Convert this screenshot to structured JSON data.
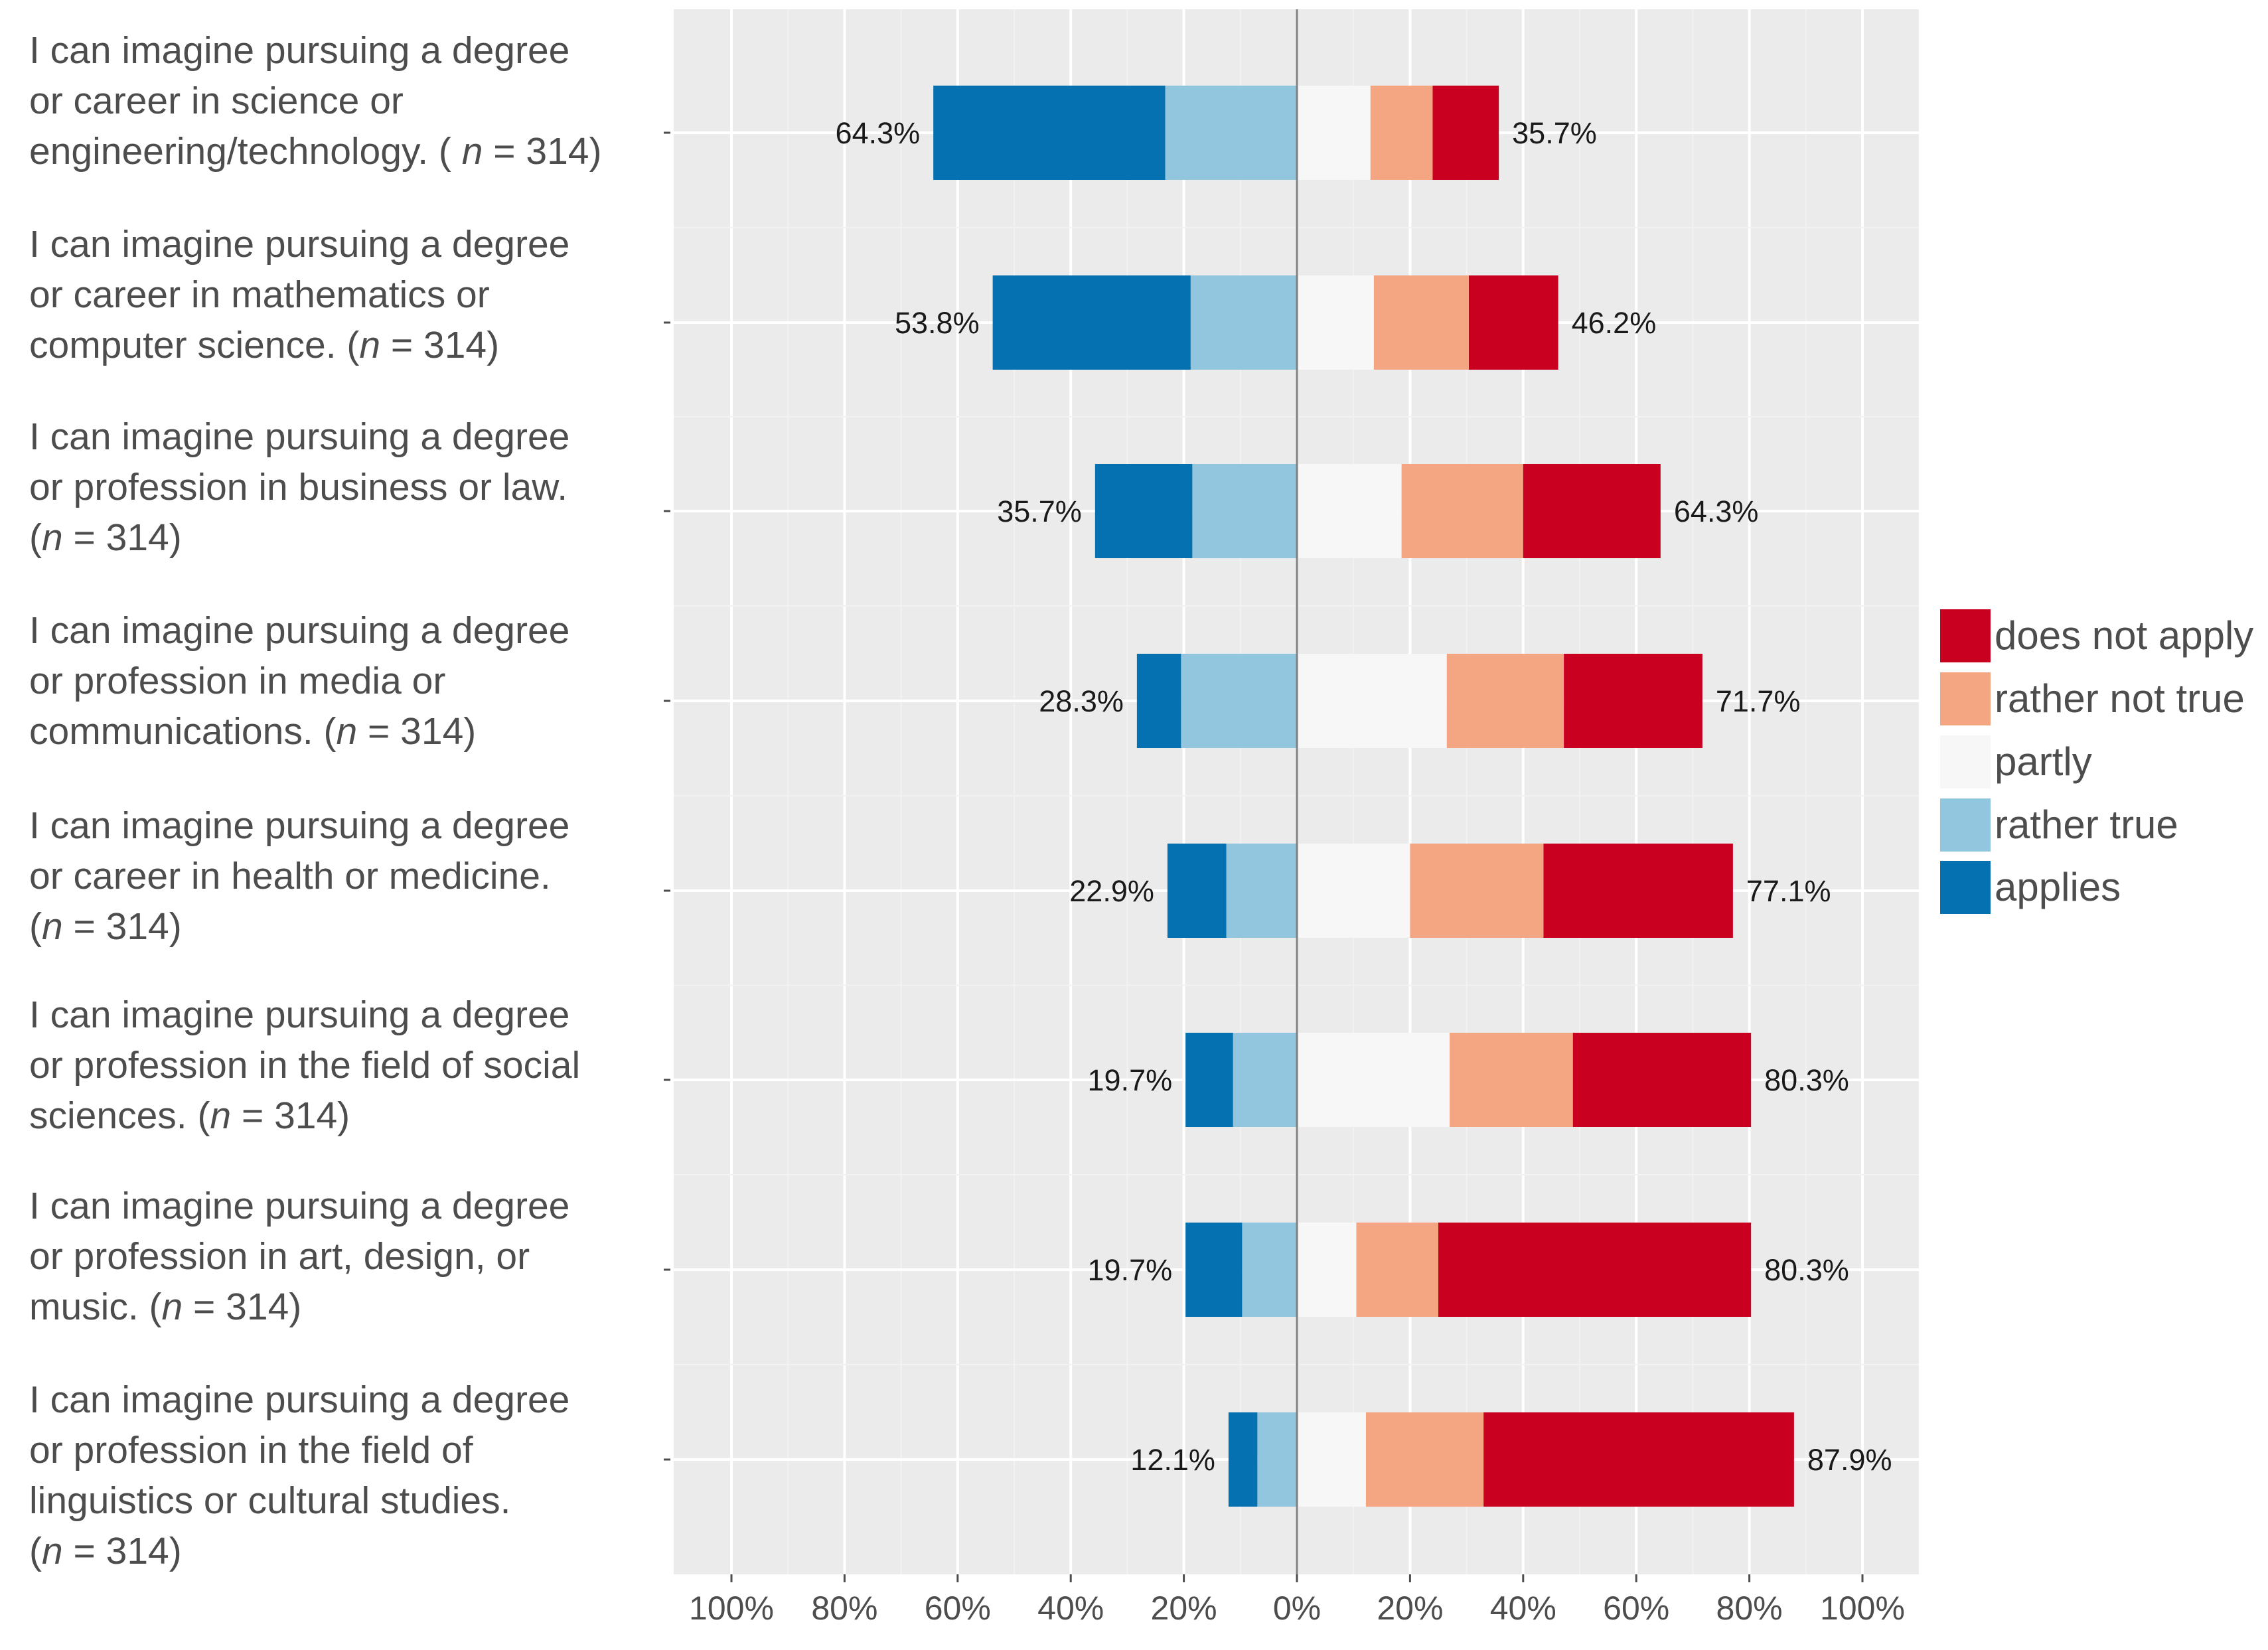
{
  "chart_data": {
    "type": "bar",
    "orientation": "horizontal",
    "stacking": "diverging",
    "xlim": [
      -100,
      100
    ],
    "x_ticks": [
      -100,
      -80,
      -60,
      -40,
      -20,
      0,
      20,
      40,
      60,
      80,
      100
    ],
    "x_tick_labels": [
      "100%",
      "80%",
      "60%",
      "40%",
      "20%",
      "0%",
      "20%",
      "40%",
      "60%",
      "80%",
      "100%"
    ],
    "grid": true,
    "legend_position": "right",
    "colors": {
      "applies": "#0571b0",
      "rather_true": "#92c5de",
      "partly": "#f7f7f7",
      "rather_not_true": "#f4a582",
      "does_not_apply": "#ca0020"
    },
    "legend": [
      {
        "key": "does_not_apply",
        "label": "does not apply"
      },
      {
        "key": "rather_not_true",
        "label": "rather not true"
      },
      {
        "key": "partly",
        "label": "partly"
      },
      {
        "key": "rather_true",
        "label": "rather true"
      },
      {
        "key": "applies",
        "label": "applies"
      }
    ],
    "categories": [
      {
        "lines": [
          "I can imagine pursuing a degree",
          "or career in science or",
          "engineering/technology. ( |n| = 314)"
        ],
        "applies": 41,
        "rather_true": 23.3,
        "partly": 13,
        "rather_not_true": 11,
        "does_not_apply": 11.7,
        "left_label": "64.3%",
        "right_label": "35.7%"
      },
      {
        "lines": [
          "I can imagine pursuing a degree",
          "or career in mathematics or",
          "computer science. (|n| = 314)"
        ],
        "applies": 35,
        "rather_true": 18.8,
        "partly": 13.6,
        "rather_not_true": 16.8,
        "does_not_apply": 15.8,
        "left_label": "53.8%",
        "right_label": "46.2%"
      },
      {
        "lines": [
          "I can imagine pursuing a degree",
          "or profession in business or law.",
          "(|n| = 314)"
        ],
        "applies": 17.2,
        "rather_true": 18.5,
        "partly": 18.5,
        "rather_not_true": 21.5,
        "does_not_apply": 24.3,
        "left_label": "35.7%",
        "right_label": "64.3%"
      },
      {
        "lines": [
          "I can imagine pursuing a degree",
          "or profession in media or",
          "communications. (|n| = 314)"
        ],
        "applies": 7.8,
        "rather_true": 20.5,
        "partly": 26.5,
        "rather_not_true": 20.7,
        "does_not_apply": 24.5,
        "left_label": "28.3%",
        "right_label": "71.7%"
      },
      {
        "lines": [
          "I can imagine pursuing a degree",
          "or career in health or medicine.",
          "(|n| = 314)"
        ],
        "applies": 10.4,
        "rather_true": 12.5,
        "partly": 20,
        "rather_not_true": 23.6,
        "does_not_apply": 33.5,
        "left_label": "22.9%",
        "right_label": "77.1%"
      },
      {
        "lines": [
          "I can imagine pursuing a degree",
          "or profession in the field of social",
          "sciences. (|n| = 314)"
        ],
        "applies": 8.4,
        "rather_true": 11.3,
        "partly": 27,
        "rather_not_true": 21.8,
        "does_not_apply": 31.5,
        "left_label": "19.7%",
        "right_label": "80.3%"
      },
      {
        "lines": [
          "I can imagine pursuing a degree",
          "or profession in art, design, or",
          "music. (|n| = 314)"
        ],
        "applies": 10,
        "rather_true": 9.7,
        "partly": 10.5,
        "rather_not_true": 14.5,
        "does_not_apply": 55.3,
        "left_label": "19.7%",
        "right_label": "80.3%"
      },
      {
        "lines": [
          "I can imagine pursuing a degree",
          "or profession in the field of",
          "linguistics or cultural studies.",
          "(|n| = 314)"
        ],
        "applies": 5.1,
        "rather_true": 7,
        "partly": 12.2,
        "rather_not_true": 20.8,
        "does_not_apply": 54.9,
        "left_label": "12.1%",
        "right_label": "87.9%"
      }
    ]
  }
}
